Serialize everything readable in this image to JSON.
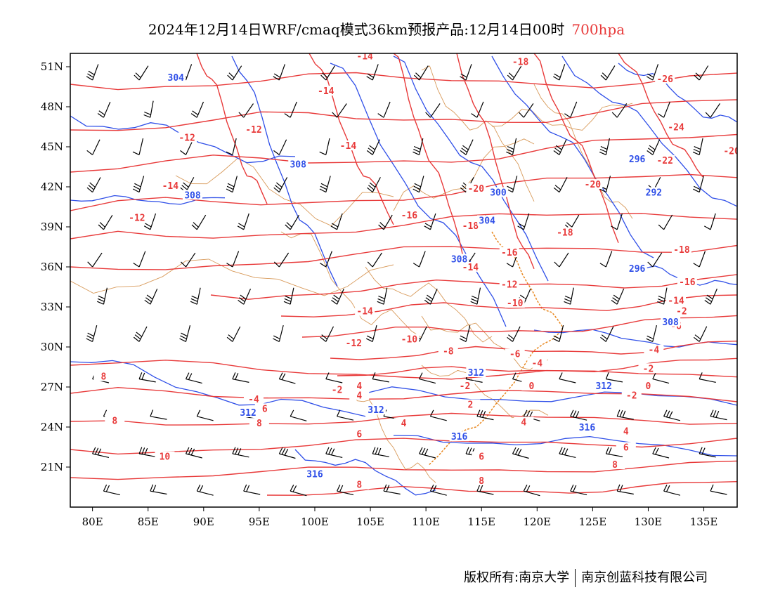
{
  "title": {
    "main": "2024年12月14日WRF/cmaq模式36km预报产品:12月14日00时",
    "level": "700hpa",
    "level_color": "#e83a3a"
  },
  "footer": {
    "left": "版权所有:南京大学",
    "right": "南京创蓝科技有限公司"
  },
  "axes": {
    "lon_ticks": [
      "80E",
      "85E",
      "90E",
      "95E",
      "100E",
      "105E",
      "110E",
      "115E",
      "120E",
      "125E",
      "130E",
      "135E"
    ],
    "lat_ticks": [
      "51N",
      "48N",
      "45N",
      "42N",
      "39N",
      "36N",
      "33N",
      "30N",
      "27N",
      "24N",
      "21N"
    ]
  },
  "map": {
    "lon_range": [
      78,
      138
    ],
    "lat_range": [
      18,
      52
    ],
    "temperature_contours": {
      "color": "#e83a3a",
      "labels": [
        {
          "text": "-14",
          "lon": 104.5,
          "lat": 51.7
        },
        {
          "text": "-18",
          "lon": 118.5,
          "lat": 51.3
        },
        {
          "text": "-14",
          "lon": 101,
          "lat": 49.1
        },
        {
          "text": "-26",
          "lon": 131.5,
          "lat": 50.0
        },
        {
          "text": "-12",
          "lon": 94.5,
          "lat": 46.2
        },
        {
          "text": "-24",
          "lon": 132.5,
          "lat": 46.4
        },
        {
          "text": "-12",
          "lon": 88.5,
          "lat": 45.6
        },
        {
          "text": "-14",
          "lon": 103,
          "lat": 45.0
        },
        {
          "text": "-20",
          "lon": 137.5,
          "lat": 44.6
        },
        {
          "text": "-22",
          "lon": 131.5,
          "lat": 43.9
        },
        {
          "text": "-14",
          "lon": 87,
          "lat": 42.0
        },
        {
          "text": "-20",
          "lon": 114.5,
          "lat": 41.8
        },
        {
          "text": "-20",
          "lon": 125,
          "lat": 42.1
        },
        {
          "text": "-12",
          "lon": 84,
          "lat": 39.6
        },
        {
          "text": "-16",
          "lon": 108.5,
          "lat": 39.8
        },
        {
          "text": "-18",
          "lon": 114,
          "lat": 39.0
        },
        {
          "text": "-18",
          "lon": 122.5,
          "lat": 38.5
        },
        {
          "text": "-16",
          "lon": 117.5,
          "lat": 37.0
        },
        {
          "text": "-18",
          "lon": 133,
          "lat": 37.2
        },
        {
          "text": "-14",
          "lon": 114,
          "lat": 35.9
        },
        {
          "text": "-12",
          "lon": 117.5,
          "lat": 34.6
        },
        {
          "text": "-16",
          "lon": 133.5,
          "lat": 34.8
        },
        {
          "text": "-14",
          "lon": 132.5,
          "lat": 33.4
        },
        {
          "text": "-10",
          "lon": 118,
          "lat": 33.2
        },
        {
          "text": "-14",
          "lon": 104.5,
          "lat": 32.6
        },
        {
          "text": "-2",
          "lon": 133,
          "lat": 32.6
        },
        {
          "text": "-6",
          "lon": 132.5,
          "lat": 31.5
        },
        {
          "text": "-12",
          "lon": 103.5,
          "lat": 30.2
        },
        {
          "text": "-10",
          "lon": 108.5,
          "lat": 30.5
        },
        {
          "text": "-8",
          "lon": 112,
          "lat": 29.6
        },
        {
          "text": "-6",
          "lon": 118,
          "lat": 29.4
        },
        {
          "text": "-4",
          "lon": 130.5,
          "lat": 29.7
        },
        {
          "text": "-4",
          "lon": 120,
          "lat": 28.7
        },
        {
          "text": "-2",
          "lon": 130,
          "lat": 28.3
        },
        {
          "text": "8",
          "lon": 81,
          "lat": 27.7
        },
        {
          "text": "-2",
          "lon": 102,
          "lat": 26.7
        },
        {
          "text": "-2",
          "lon": 113.5,
          "lat": 27.0
        },
        {
          "text": "0",
          "lon": 119.5,
          "lat": 27.0
        },
        {
          "text": "0",
          "lon": 130,
          "lat": 27.0
        },
        {
          "text": "-2",
          "lon": 128.5,
          "lat": 26.3
        },
        {
          "text": "4",
          "lon": 104,
          "lat": 27.0
        },
        {
          "text": "4",
          "lon": 104,
          "lat": 26.3
        },
        {
          "text": "-4",
          "lon": 94.5,
          "lat": 26.0
        },
        {
          "text": "6",
          "lon": 95.5,
          "lat": 25.3
        },
        {
          "text": "2",
          "lon": 114,
          "lat": 25.6
        },
        {
          "text": "8",
          "lon": 82,
          "lat": 24.4
        },
        {
          "text": "8",
          "lon": 95,
          "lat": 24.2
        },
        {
          "text": "4",
          "lon": 108,
          "lat": 24.2
        },
        {
          "text": "4",
          "lon": 118.8,
          "lat": 24.3
        },
        {
          "text": "4",
          "lon": 128,
          "lat": 23.6
        },
        {
          "text": "6",
          "lon": 104,
          "lat": 23.4
        },
        {
          "text": "6",
          "lon": 128,
          "lat": 22.4
        },
        {
          "text": "10",
          "lon": 86.5,
          "lat": 21.7
        },
        {
          "text": "6",
          "lon": 115,
          "lat": 21.7
        },
        {
          "text": "8",
          "lon": 127,
          "lat": 21.1
        },
        {
          "text": "8",
          "lon": 115,
          "lat": 19.9
        },
        {
          "text": "8",
          "lon": 104,
          "lat": 19.6
        }
      ]
    },
    "height_contours": {
      "color": "#2f4fe8",
      "labels": [
        {
          "text": "304",
          "lon": 87.5,
          "lat": 50.1
        },
        {
          "text": "308",
          "lon": 98.5,
          "lat": 43.6
        },
        {
          "text": "296",
          "lon": 129,
          "lat": 44.0
        },
        {
          "text": "308",
          "lon": 89,
          "lat": 41.3
        },
        {
          "text": "300",
          "lon": 116.5,
          "lat": 41.5
        },
        {
          "text": "292",
          "lon": 130.5,
          "lat": 41.5
        },
        {
          "text": "304",
          "lon": 115.5,
          "lat": 39.4
        },
        {
          "text": "296",
          "lon": 129,
          "lat": 35.8
        },
        {
          "text": "308",
          "lon": 113,
          "lat": 36.5
        },
        {
          "text": "308",
          "lon": 132,
          "lat": 31.8
        },
        {
          "text": "312",
          "lon": 114.5,
          "lat": 28.0
        },
        {
          "text": "312",
          "lon": 126,
          "lat": 27.0
        },
        {
          "text": "312",
          "lon": 94,
          "lat": 25.0
        },
        {
          "text": "312",
          "lon": 105.5,
          "lat": 25.2
        },
        {
          "text": "316",
          "lon": 124.5,
          "lat": 23.9
        },
        {
          "text": "316",
          "lon": 113,
          "lat": 23.2
        },
        {
          "text": "316",
          "lon": 100,
          "lat": 20.4
        }
      ]
    },
    "wind_barbs": {
      "color": "#000000",
      "note_units": "standard wind barbs"
    },
    "coastline_color": "#e8871e",
    "border_color": "#d89a5a"
  }
}
